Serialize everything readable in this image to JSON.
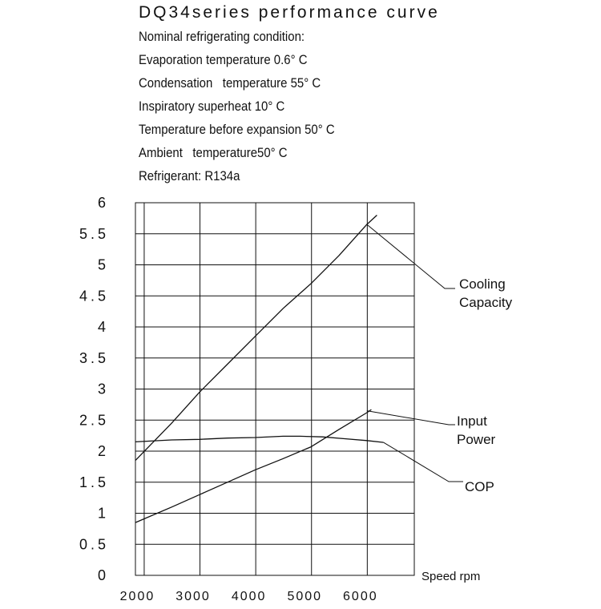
{
  "header": {
    "title": "DQ34series  performance  curve",
    "conditions": [
      "Nominal refrigerating condition:",
      "Evaporation temperature 0.6° C",
      "Condensation   temperature 55° C",
      "Inspiratory superheat 10° C",
      "Temperature before expansion 50° C",
      "Ambient   temperature50° C",
      "Refrigerant: R134a"
    ]
  },
  "chart_data": {
    "type": "line",
    "xlabel": "Speed rpm",
    "ylabel": "",
    "xlim": [
      1850,
      6850
    ],
    "ylim": [
      0,
      6
    ],
    "xticks": [
      2000,
      3000,
      4000,
      5000,
      6000
    ],
    "xtick_labels": [
      "2000",
      "3000",
      "4000",
      "5000",
      "6000"
    ],
    "yticks": [
      0,
      0.5,
      1,
      1.5,
      2,
      2.5,
      3,
      3.5,
      4,
      4.5,
      5,
      5.5,
      6
    ],
    "ytick_labels": [
      "0",
      "0.5",
      "1",
      "1.5",
      "2",
      "2.5",
      "3",
      "3.5",
      "4",
      "4.5",
      "5",
      "5.5",
      "6"
    ],
    "grid": true,
    "series": [
      {
        "name": "Cooling Capacity",
        "label_lines": [
          "Cooling",
          "Capacity"
        ],
        "x": [
          1850,
          2500,
          3000,
          3500,
          4000,
          4500,
          5000,
          5500,
          6000,
          6180
        ],
        "y": [
          1.85,
          2.45,
          2.95,
          3.4,
          3.85,
          4.3,
          4.7,
          5.15,
          5.65,
          5.8
        ],
        "label_anchor": [
          6000,
          5.65
        ]
      },
      {
        "name": "Input Power",
        "label_lines": [
          "Input",
          "Power"
        ],
        "x": [
          1850,
          2500,
          3000,
          3500,
          4000,
          4500,
          5000,
          5500,
          6000,
          6080
        ],
        "y": [
          0.85,
          1.1,
          1.3,
          1.5,
          1.7,
          1.88,
          2.07,
          2.35,
          2.62,
          2.67
        ],
        "label_anchor": [
          6000,
          2.65
        ]
      },
      {
        "name": "COP",
        "label_lines": [
          "COP"
        ],
        "x": [
          1850,
          2500,
          3000,
          3500,
          4000,
          4500,
          4800,
          5200,
          5600,
          6000,
          6300
        ],
        "y": [
          2.15,
          2.18,
          2.19,
          2.21,
          2.22,
          2.24,
          2.24,
          2.23,
          2.2,
          2.17,
          2.14
        ],
        "label_anchor": [
          6300,
          2.14
        ]
      }
    ]
  }
}
